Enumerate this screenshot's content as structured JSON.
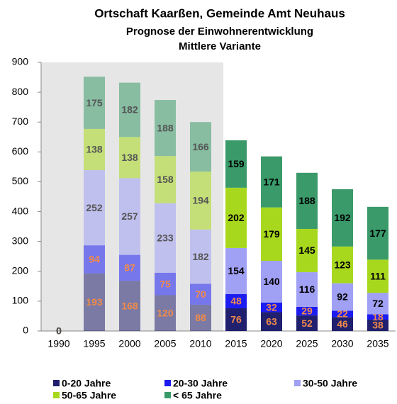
{
  "chart_data": {
    "type": "stacked_bar",
    "title": "Ortschaft Kaarßen, Gemeinde Amt Neuhaus",
    "subtitle": "Prognose der Einwohnerentwicklung",
    "subtitle2": "Mittlere Variante",
    "categories": [
      "1990",
      "1995",
      "2000",
      "2005",
      "2010",
      "2015",
      "2020",
      "2025",
      "2030",
      "2035"
    ],
    "series": [
      {
        "name": "0-20 Jahre",
        "color": "#20206e",
        "label_color": "#f08a4b",
        "values": [
          0,
          193,
          168,
          120,
          88,
          76,
          63,
          52,
          46,
          38
        ]
      },
      {
        "name": "20-30 Jahre",
        "color": "#1c1cf0",
        "label_color": "#f08a4b",
        "values": [
          0,
          94,
          87,
          75,
          70,
          48,
          32,
          29,
          22,
          18
        ]
      },
      {
        "name": "30-50 Jahre",
        "color": "#a0a0f5",
        "label_color": "#000000",
        "values": [
          0,
          252,
          257,
          233,
          182,
          154,
          140,
          116,
          92,
          72
        ]
      },
      {
        "name": "50-65 Jahre",
        "color": "#a8d81e",
        "label_color": "#000000",
        "values": [
          0,
          138,
          138,
          158,
          194,
          202,
          179,
          145,
          123,
          111
        ]
      },
      {
        "name": "< 65 Jahre",
        "color": "#3a9a6a",
        "label_color": "#000000",
        "values": [
          0,
          175,
          182,
          188,
          166,
          159,
          171,
          188,
          192,
          177
        ]
      }
    ],
    "ylim": [
      0,
      900
    ],
    "yticks": [
      0,
      100,
      200,
      300,
      400,
      500,
      600,
      700,
      800,
      900
    ]
  }
}
